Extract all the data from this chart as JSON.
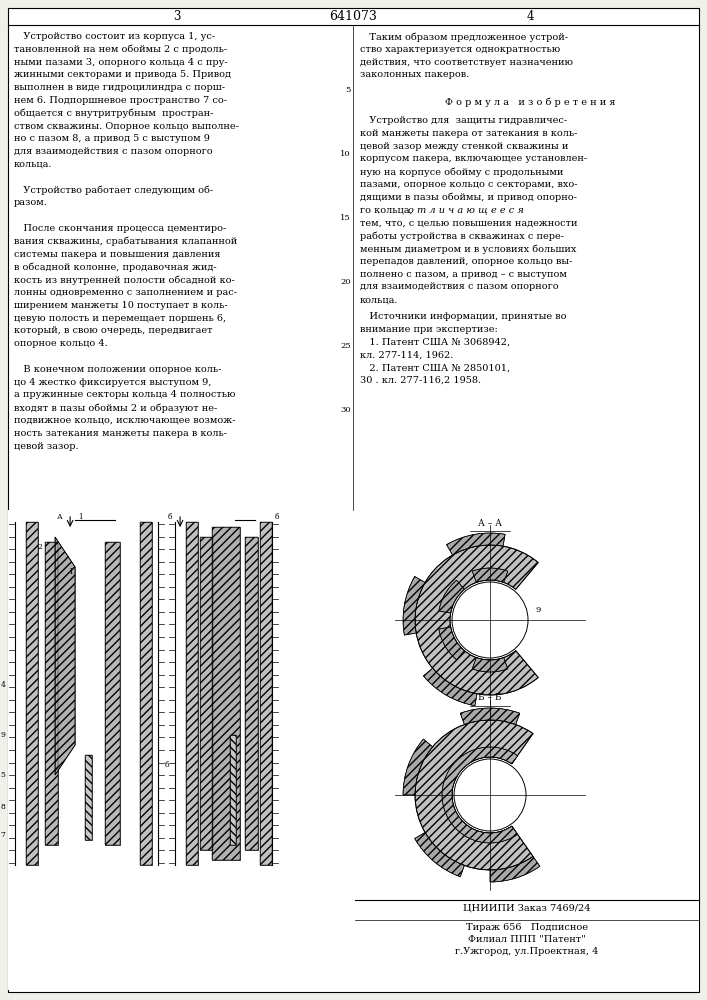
{
  "page_bg": "#f0f0eb",
  "title_number": "641073",
  "page_left": "3",
  "page_right": "4",
  "left_col_text": [
    "   Устройство состоит из корпуса 1, ус-",
    "тановленной на нем обоймы 2 с продоль-",
    "ными пазами 3, опорного кольца 4 с пру-",
    "жинными секторами и привода 5. Привод",
    "выполнен в виде гидроцилиндра с порш-",
    "нем 6. Подпоршневое пространство 7 со-",
    "общается с внутритрубным  простран-",
    "ством скважины. Опорное кольцо выполне-",
    "но с пазом 8, а привод 5 с выступом 9",
    "для взаимодействия с пазом опорного",
    "кольца.",
    "",
    "   Устройство работает следующим об-",
    "разом.",
    "",
    "   После скончания процесса цементиро-",
    "вания скважины, срабатывания клапанной",
    "системы пакера и повышения давления",
    "в обсадной колонне, продавочная жид-",
    "кость из внутренней полости обсадной ко-",
    "лонны одновременно с заполнением и рас-",
    "ширением манжеты 10 поступает в коль-",
    "цевую полость и перемещает поршень 6,",
    "который, в свою очередь, передвигает",
    "опорное кольцо 4.",
    "",
    "   В конечном положении опорное коль-",
    "цо 4 жестко фиксируется выступом 9,",
    "а пружинные секторы кольца 4 полностью",
    "входят в пазы обоймы 2 и образуют не-",
    "подвижное кольцо, исключающее возмож-",
    "ность затекания манжеты пакера в коль-",
    "цевой зазор."
  ],
  "right_col_text_top": [
    "   Таким образом предложенное устрой-",
    "ство характеризуется однократностью",
    "действия, что соответствует назначению",
    "заколонных пакеров."
  ],
  "formula_header": "Ф о р м у л а   и з о б р е т е н и я",
  "right_col_formula": [
    "   Устройство для  защиты гидравличес-",
    "кой манжеты пакера от затекания в коль-",
    "цевой зазор между стенкой скважины и",
    "корпусом пакера, включающее установлен-",
    "ную на корпусе обойму с продольными",
    "пазами, опорное кольцо с секторами, вхо-",
    "дящими в пазы обоймы, и привод опорно-",
    "го кольца, о т л и ч а ю щ е е с я",
    "тем, что, с целью повышения надежности",
    "работы устройства в скважинах с пере-",
    "менным диаметром и в условиях больших",
    "перепадов давлений, опорное кольцо вы-",
    "полнено с пазом, а привод – с выступом",
    "для взаимодействия с пазом опорного",
    "кольца."
  ],
  "sources_header": "   Источники информации, принятые во",
  "sources_text": [
    "внимание при экспертизе:",
    "   1. Патент США № 3068942,",
    "кл. 277-114, 1962.",
    "   2. Патент США № 2850101,",
    "30 . кл. 277-116,2 1958."
  ],
  "line_numbers_left": [
    "5",
    "10",
    "15",
    "20",
    "25",
    "30"
  ],
  "line_numbers_right": [
    "5",
    "10",
    "15",
    "20",
    "25",
    "30"
  ],
  "footer_line1": "ЦНИИПИ Заказ 7469/24",
  "footer_line2": "Тираж 656   Подписное",
  "footer_line3": "Филиал ППП \"Патент\"",
  "footer_line4": "г.Ужгород, ул.Проектная, 4"
}
